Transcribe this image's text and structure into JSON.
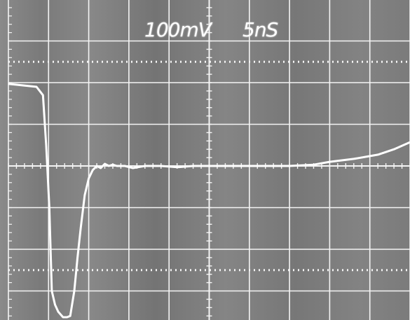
{
  "chart_data": {
    "type": "line",
    "title": "",
    "xlabel": "",
    "ylabel": "",
    "volts_per_div_label": "100mV",
    "time_per_div_label": "5nS",
    "volts_per_div": 0.1,
    "time_per_div_ns": 5,
    "grid": true,
    "divisions": {
      "x": 10,
      "y": 8
    },
    "xlim": [
      0,
      50
    ],
    "ylim": [
      -0.4,
      0.4
    ],
    "series": [
      {
        "x": [
          0,
          3.5,
          4.3,
          4.7,
          5.1,
          5.4,
          5.8,
          6.2,
          6.8,
          7.3,
          7.7,
          8.2,
          8.6,
          9.0,
          9.5,
          10.0,
          10.5,
          11.0,
          11.5,
          12.0,
          12.5,
          13.0,
          13.5,
          14.5,
          15.5,
          17.0,
          19.0,
          21.0,
          23.0,
          26.0,
          30.0,
          35.0,
          38.0,
          40.0,
          43.0,
          46.0,
          48.0,
          50.0
        ],
        "y": [
          0.197,
          0.19,
          0.17,
          0.05,
          -0.1,
          -0.3,
          -0.333,
          -0.35,
          -0.363,
          -0.363,
          -0.36,
          -0.3,
          -0.22,
          -0.15,
          -0.07,
          -0.03,
          -0.01,
          0.0,
          -0.005,
          0.005,
          0.0,
          0.003,
          0.0,
          0.0,
          -0.005,
          0.0,
          0.0,
          -0.003,
          0.0,
          0.0,
          0.0,
          0.0,
          0.003,
          0.01,
          0.017,
          0.027,
          0.04,
          0.057
        ]
      }
    ]
  }
}
